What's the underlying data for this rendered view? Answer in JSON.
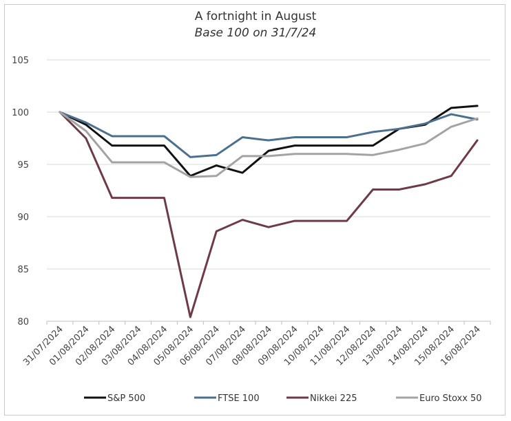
{
  "chart_data": {
    "type": "line",
    "title": "A fortnight in August",
    "subtitle": "Base 100 on 31/7/24",
    "xlabel": "",
    "ylabel": "",
    "ylim": [
      80,
      105
    ],
    "yticks": [
      80,
      85,
      90,
      95,
      100,
      105
    ],
    "grid": "horizontal",
    "legend": "bottom",
    "categories": [
      "31/07/2024",
      "01/08/2024",
      "02/08/2024",
      "03/08/2024",
      "04/08/2024",
      "05/08/2024",
      "06/08/2024",
      "07/08/2024",
      "08/08/2024",
      "09/08/2024",
      "10/08/2024",
      "11/08/2024",
      "12/08/2024",
      "13/08/2024",
      "14/08/2024",
      "15/08/2024",
      "16/08/2024"
    ],
    "series": [
      {
        "name": "S&P 500",
        "color": "#111111",
        "values": [
          100,
          98.8,
          96.8,
          96.8,
          96.8,
          93.9,
          94.9,
          94.2,
          96.3,
          96.8,
          96.8,
          96.8,
          96.8,
          98.4,
          98.8,
          100.4,
          100.6
        ]
      },
      {
        "name": "FTSE 100",
        "color": "#4a6f8f",
        "values": [
          100,
          99.0,
          97.7,
          97.7,
          97.7,
          95.7,
          95.9,
          97.6,
          97.3,
          97.6,
          97.6,
          97.6,
          98.1,
          98.4,
          98.9,
          99.8,
          99.3
        ]
      },
      {
        "name": "Nikkei 225",
        "color": "#6e3a45",
        "values": [
          100,
          97.5,
          91.8,
          91.8,
          91.8,
          80.4,
          88.6,
          89.7,
          89.0,
          89.6,
          89.6,
          89.6,
          92.6,
          92.6,
          93.1,
          93.9,
          97.3
        ]
      },
      {
        "name": "Euro Stoxx 50",
        "color": "#a3a3a3",
        "values": [
          100,
          98.2,
          95.2,
          95.2,
          95.2,
          93.8,
          93.9,
          95.8,
          95.8,
          96.0,
          96.0,
          96.0,
          95.9,
          96.4,
          97.0,
          98.6,
          99.4
        ]
      }
    ]
  }
}
